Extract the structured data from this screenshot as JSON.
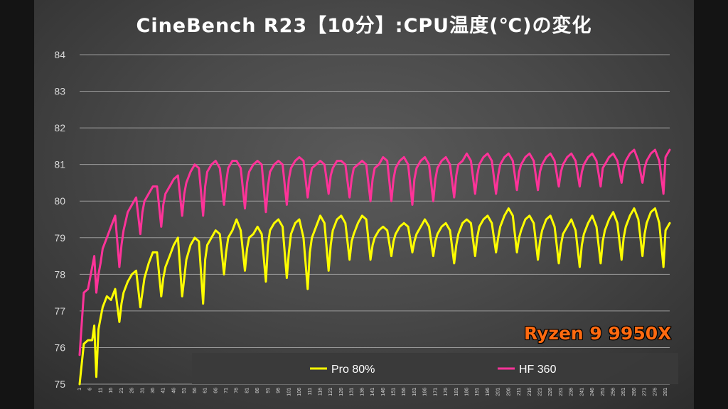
{
  "chart_data": {
    "type": "line",
    "title": "CineBench R23【10分】:CPU温度(℃)の変化",
    "annotation": "Ryzen 9 9950X",
    "ylim": [
      75,
      84
    ],
    "yticks": [
      75,
      76,
      77,
      78,
      79,
      80,
      81,
      82,
      83,
      84
    ],
    "grid": true,
    "legend_position": "bottom",
    "x_start": 1,
    "x_end": 283,
    "xtick_step": 5,
    "series": [
      {
        "name": "Pro 80%",
        "color": "#ffff00",
        "x": [
          1,
          3,
          5,
          7,
          8,
          9,
          10,
          11,
          12,
          14,
          16,
          18,
          20,
          21,
          22,
          24,
          26,
          28,
          30,
          31,
          32,
          34,
          36,
          38,
          40,
          41,
          42,
          44,
          46,
          48,
          50,
          51,
          52,
          54,
          56,
          58,
          60,
          61,
          62,
          64,
          66,
          68,
          70,
          71,
          72,
          74,
          76,
          78,
          80,
          81,
          82,
          84,
          86,
          88,
          90,
          91,
          92,
          94,
          96,
          98,
          100,
          101,
          102,
          104,
          106,
          108,
          110,
          111,
          112,
          114,
          116,
          118,
          120,
          121,
          122,
          124,
          126,
          128,
          130,
          131,
          132,
          134,
          136,
          138,
          140,
          141,
          142,
          144,
          146,
          148,
          150,
          151,
          152,
          154,
          156,
          158,
          160,
          161,
          162,
          164,
          166,
          168,
          170,
          171,
          172,
          174,
          176,
          178,
          180,
          181,
          182,
          184,
          186,
          188,
          190,
          191,
          192,
          194,
          196,
          198,
          200,
          201,
          202,
          204,
          206,
          208,
          210,
          211,
          212,
          214,
          216,
          218,
          220,
          221,
          222,
          224,
          226,
          228,
          230,
          231,
          232,
          234,
          236,
          238,
          240,
          241,
          242,
          244,
          246,
          248,
          250,
          251,
          252,
          254,
          256,
          258,
          260,
          261,
          262,
          264,
          266,
          268,
          270,
          271,
          272,
          274,
          276,
          278,
          280,
          281,
          283
        ],
        "values": [
          75.0,
          76.1,
          76.2,
          76.2,
          76.6,
          75.2,
          76.5,
          76.8,
          77.1,
          77.4,
          77.3,
          77.6,
          76.7,
          77.2,
          77.5,
          77.8,
          78.0,
          78.1,
          77.1,
          77.5,
          77.9,
          78.3,
          78.6,
          78.6,
          77.4,
          77.9,
          78.2,
          78.5,
          78.8,
          79.0,
          77.4,
          77.9,
          78.4,
          78.8,
          79.0,
          78.9,
          77.2,
          78.4,
          78.8,
          79.0,
          79.2,
          79.1,
          78.0,
          78.6,
          79.0,
          79.2,
          79.5,
          79.2,
          78.1,
          78.7,
          79.0,
          79.1,
          79.3,
          79.1,
          77.8,
          78.8,
          79.2,
          79.4,
          79.5,
          79.3,
          77.9,
          78.6,
          79.1,
          79.4,
          79.5,
          79.0,
          77.6,
          78.6,
          79.0,
          79.3,
          79.6,
          79.4,
          78.1,
          78.8,
          79.2,
          79.5,
          79.6,
          79.4,
          78.4,
          78.9,
          79.1,
          79.4,
          79.6,
          79.5,
          78.4,
          78.8,
          79.0,
          79.2,
          79.3,
          79.2,
          78.5,
          78.9,
          79.1,
          79.3,
          79.4,
          79.3,
          78.6,
          78.9,
          79.1,
          79.3,
          79.5,
          79.3,
          78.5,
          78.9,
          79.1,
          79.3,
          79.4,
          79.2,
          78.3,
          78.8,
          79.1,
          79.4,
          79.5,
          79.4,
          78.5,
          79.0,
          79.3,
          79.5,
          79.6,
          79.4,
          78.6,
          79.0,
          79.3,
          79.6,
          79.8,
          79.6,
          78.6,
          79.0,
          79.2,
          79.5,
          79.6,
          79.4,
          78.4,
          78.9,
          79.2,
          79.5,
          79.6,
          79.3,
          78.3,
          78.8,
          79.1,
          79.3,
          79.5,
          79.2,
          78.2,
          78.8,
          79.1,
          79.4,
          79.6,
          79.3,
          78.3,
          78.9,
          79.2,
          79.5,
          79.7,
          79.4,
          78.4,
          79.0,
          79.3,
          79.6,
          79.8,
          79.5,
          78.5,
          79.1,
          79.4,
          79.7,
          79.8,
          79.4,
          78.2,
          79.2,
          79.4
        ]
      },
      {
        "name": "HF 360",
        "color": "#ff3399",
        "x": [
          1,
          3,
          5,
          7,
          8,
          9,
          10,
          11,
          12,
          14,
          16,
          18,
          20,
          21,
          22,
          24,
          26,
          28,
          30,
          31,
          32,
          34,
          36,
          38,
          40,
          41,
          42,
          44,
          46,
          48,
          50,
          51,
          52,
          54,
          56,
          58,
          60,
          61,
          62,
          64,
          66,
          68,
          70,
          71,
          72,
          74,
          76,
          78,
          80,
          81,
          82,
          84,
          86,
          88,
          90,
          91,
          92,
          94,
          96,
          98,
          100,
          101,
          102,
          104,
          106,
          108,
          110,
          111,
          112,
          114,
          116,
          118,
          120,
          121,
          122,
          124,
          126,
          128,
          130,
          131,
          132,
          134,
          136,
          138,
          140,
          141,
          142,
          144,
          146,
          148,
          150,
          151,
          152,
          154,
          156,
          158,
          160,
          161,
          162,
          164,
          166,
          168,
          170,
          171,
          172,
          174,
          176,
          178,
          180,
          181,
          182,
          184,
          186,
          188,
          190,
          191,
          192,
          194,
          196,
          198,
          200,
          201,
          202,
          204,
          206,
          208,
          210,
          211,
          212,
          214,
          216,
          218,
          220,
          221,
          222,
          224,
          226,
          228,
          230,
          231,
          232,
          234,
          236,
          238,
          240,
          241,
          242,
          244,
          246,
          248,
          250,
          251,
          252,
          254,
          256,
          258,
          260,
          261,
          262,
          264,
          266,
          268,
          270,
          271,
          272,
          274,
          276,
          278,
          280,
          281,
          283
        ],
        "values": [
          75.8,
          77.5,
          77.6,
          78.2,
          78.5,
          77.5,
          78.0,
          78.3,
          78.7,
          79.0,
          79.3,
          79.6,
          78.2,
          78.8,
          79.2,
          79.7,
          79.9,
          80.1,
          79.1,
          79.7,
          80.0,
          80.2,
          80.4,
          80.4,
          79.3,
          79.9,
          80.2,
          80.4,
          80.6,
          80.7,
          79.6,
          80.2,
          80.5,
          80.8,
          81.0,
          80.9,
          79.6,
          80.4,
          80.8,
          81.0,
          81.1,
          80.9,
          79.9,
          80.5,
          80.9,
          81.1,
          81.1,
          80.9,
          79.8,
          80.5,
          80.8,
          81.0,
          81.1,
          81.0,
          79.7,
          80.4,
          80.8,
          81.0,
          81.1,
          81.0,
          79.9,
          80.6,
          80.9,
          81.1,
          81.2,
          81.1,
          80.1,
          80.6,
          80.9,
          81.0,
          81.1,
          81.0,
          80.2,
          80.7,
          80.9,
          81.1,
          81.1,
          81.0,
          80.1,
          80.6,
          80.9,
          81.0,
          81.1,
          81.0,
          80.0,
          80.6,
          80.9,
          81.0,
          81.2,
          81.1,
          80.0,
          80.6,
          80.9,
          81.1,
          81.2,
          81.0,
          79.9,
          80.6,
          80.9,
          81.1,
          81.2,
          81.0,
          80.0,
          80.6,
          80.9,
          81.1,
          81.2,
          81.0,
          80.1,
          80.7,
          81.0,
          81.1,
          81.3,
          81.1,
          80.2,
          80.7,
          81.0,
          81.2,
          81.3,
          81.1,
          80.2,
          80.7,
          81.0,
          81.2,
          81.3,
          81.1,
          80.3,
          80.8,
          81.0,
          81.2,
          81.3,
          81.1,
          80.3,
          80.8,
          81.0,
          81.2,
          81.3,
          81.1,
          80.4,
          80.8,
          81.0,
          81.2,
          81.3,
          81.1,
          80.4,
          80.8,
          81.0,
          81.2,
          81.3,
          81.1,
          80.4,
          80.9,
          81.0,
          81.2,
          81.3,
          81.1,
          80.5,
          80.9,
          81.1,
          81.3,
          81.4,
          81.1,
          80.5,
          80.9,
          81.1,
          81.3,
          81.4,
          81.1,
          80.2,
          81.2,
          81.4
        ]
      }
    ]
  },
  "colors": {
    "grid": "#9a9a9a",
    "axis_text": "#d9d9d9",
    "badge": "#ff6a10"
  }
}
